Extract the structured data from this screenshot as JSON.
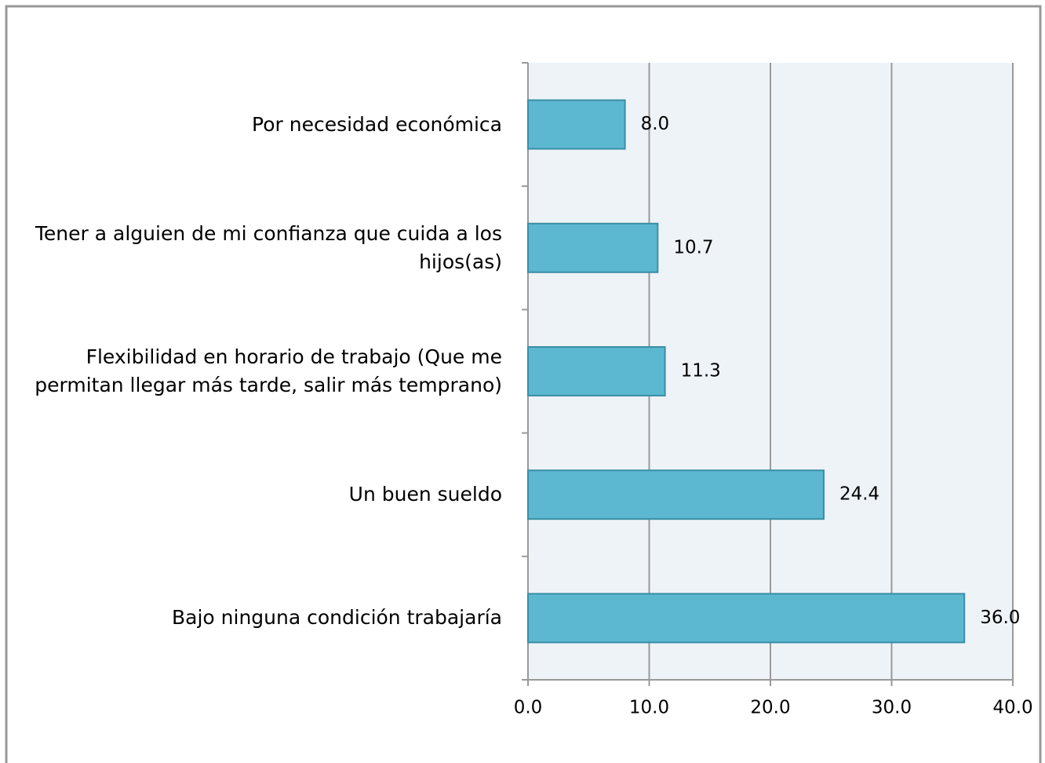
{
  "chart_data": {
    "type": "bar",
    "orientation": "horizontal",
    "categories": [
      "Por necesidad económica",
      "Tener a alguien de mi confianza que cuida a los hijos(as)",
      "Flexibilidad en horario de trabajo (Que me permitan llegar más tarde, salir más temprano)",
      "Un buen sueldo",
      "Bajo ninguna condición trabajaría"
    ],
    "values": [
      8,
      10.7,
      11.3,
      24.4,
      36
    ],
    "value_labels": [
      "8.0",
      "10.7",
      "11.3",
      "24.4",
      "36.0"
    ],
    "color": "#5bb8d0",
    "xlim": [
      0,
      40
    ],
    "xticks": [
      {
        "value": 0,
        "label": "0.0"
      },
      {
        "value": 10,
        "label": "10.0"
      },
      {
        "value": 20,
        "label": "20.0"
      },
      {
        "value": 30,
        "label": "30.0"
      },
      {
        "value": 40,
        "label": "40.0"
      }
    ],
    "grid": true
  }
}
